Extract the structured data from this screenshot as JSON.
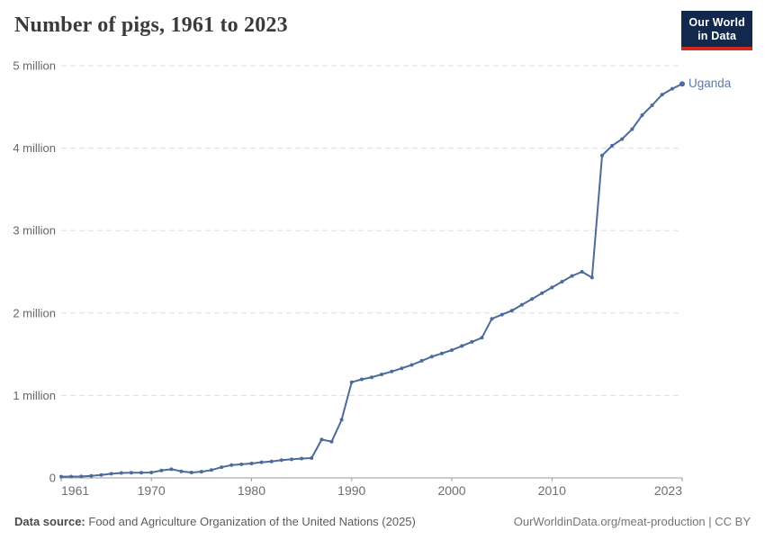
{
  "header": {
    "title": "Number of pigs, 1961 to 2023"
  },
  "logo": {
    "line1": "Our World",
    "line2": "in Data"
  },
  "chart_data": {
    "type": "line",
    "title": "Number of pigs, 1961 to 2023",
    "entity_label": "Uganda",
    "xlabel": "",
    "ylabel": "",
    "xlim": [
      1961,
      2023
    ],
    "ylim": [
      0,
      5000000
    ],
    "grid": "horizontal-dashed",
    "legend_position": "end-of-line-label",
    "line_color": "#4C6A9C",
    "entity_label_color": "#5B7BA8",
    "axis_color": "#999999",
    "gridline_color": "#DDDDDD",
    "tick_label_color": "#6E6E6E",
    "xticks": [
      1961,
      1970,
      1980,
      1990,
      2000,
      2010,
      2023
    ],
    "yticks": [
      {
        "value": 0,
        "label": "0"
      },
      {
        "value": 1000000,
        "label": "1 million"
      },
      {
        "value": 2000000,
        "label": "2 million"
      },
      {
        "value": 3000000,
        "label": "3 million"
      },
      {
        "value": 4000000,
        "label": "4 million"
      },
      {
        "value": 5000000,
        "label": "5 million"
      }
    ],
    "x": [
      1961,
      1962,
      1963,
      1964,
      1965,
      1966,
      1967,
      1968,
      1969,
      1970,
      1971,
      1972,
      1973,
      1974,
      1975,
      1976,
      1977,
      1978,
      1979,
      1980,
      1981,
      1982,
      1983,
      1984,
      1985,
      1986,
      1987,
      1988,
      1989,
      1990,
      1991,
      1992,
      1993,
      1994,
      1995,
      1996,
      1997,
      1998,
      1999,
      2000,
      2001,
      2002,
      2003,
      2004,
      2005,
      2006,
      2007,
      2008,
      2009,
      2010,
      2011,
      2012,
      2013,
      2014,
      2015,
      2016,
      2017,
      2018,
      2019,
      2020,
      2021,
      2022,
      2023
    ],
    "series": [
      {
        "name": "Uganda",
        "values": [
          15000,
          16000,
          18000,
          25000,
          35000,
          50000,
          60000,
          62000,
          63000,
          65000,
          90000,
          105000,
          80000,
          65000,
          75000,
          95000,
          130000,
          155000,
          165000,
          175000,
          190000,
          200000,
          215000,
          225000,
          235000,
          240000,
          465000,
          440000,
          705000,
          1160000,
          1195000,
          1220000,
          1255000,
          1290000,
          1330000,
          1370000,
          1420000,
          1470000,
          1510000,
          1550000,
          1600000,
          1650000,
          1700000,
          1930000,
          1980000,
          2030000,
          2100000,
          2170000,
          2240000,
          2310000,
          2380000,
          2450000,
          2500000,
          2430000,
          3910000,
          4030000,
          4110000,
          4230000,
          4400000,
          4520000,
          4650000,
          4720000,
          4780000
        ]
      }
    ]
  },
  "footer": {
    "source_label": "Data source:",
    "source_text": "Food and Agriculture Organization of the United Nations (2025)",
    "right_text": "OurWorldinData.org/meat-production | CC BY"
  }
}
